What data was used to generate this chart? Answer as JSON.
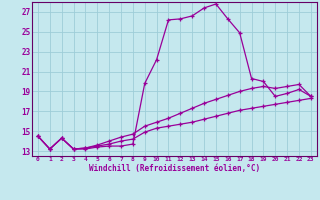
{
  "xlabel": "Windchill (Refroidissement éolien,°C)",
  "bg_color": "#c5e8ee",
  "grid_color": "#9ecdd8",
  "line_color": "#990099",
  "spine_color": "#660066",
  "xlim": [
    -0.5,
    23.5
  ],
  "ylim": [
    12.5,
    28.0
  ],
  "xticks": [
    0,
    1,
    2,
    3,
    4,
    5,
    6,
    7,
    8,
    9,
    10,
    11,
    12,
    13,
    14,
    15,
    16,
    17,
    18,
    19,
    20,
    21,
    22,
    23
  ],
  "yticks": [
    13,
    15,
    17,
    19,
    21,
    23,
    25,
    27
  ],
  "line1_x": [
    0,
    1,
    2,
    3,
    4,
    5,
    6,
    7,
    8,
    9,
    10,
    11,
    12,
    13,
    14,
    15,
    16,
    17,
    18,
    19,
    20,
    21,
    22,
    23
  ],
  "line1_y": [
    14.5,
    13.2,
    14.3,
    13.2,
    13.2,
    13.4,
    13.5,
    13.5,
    13.7,
    19.8,
    22.2,
    26.2,
    26.3,
    26.6,
    27.4,
    27.8,
    26.3,
    24.9,
    20.3,
    20.0,
    18.5,
    18.8,
    19.2,
    18.5
  ],
  "line2_x": [
    0,
    1,
    2,
    3,
    4,
    5,
    6,
    7,
    8,
    9,
    10,
    11,
    12,
    13,
    14,
    15,
    16,
    17,
    18,
    19,
    20,
    21,
    22,
    23
  ],
  "line2_y": [
    14.5,
    13.2,
    14.3,
    13.2,
    13.3,
    13.5,
    13.7,
    14.0,
    14.2,
    14.9,
    15.3,
    15.5,
    15.7,
    15.9,
    16.2,
    16.5,
    16.8,
    17.1,
    17.3,
    17.5,
    17.7,
    17.9,
    18.1,
    18.3
  ],
  "line3_x": [
    0,
    1,
    2,
    3,
    4,
    5,
    6,
    7,
    8,
    9,
    10,
    11,
    12,
    13,
    14,
    15,
    16,
    17,
    18,
    19,
    20,
    21,
    22,
    23
  ],
  "line3_y": [
    14.5,
    13.2,
    14.3,
    13.2,
    13.3,
    13.6,
    14.0,
    14.4,
    14.7,
    15.5,
    15.9,
    16.3,
    16.8,
    17.3,
    17.8,
    18.2,
    18.6,
    19.0,
    19.3,
    19.5,
    19.3,
    19.5,
    19.7,
    18.5
  ]
}
